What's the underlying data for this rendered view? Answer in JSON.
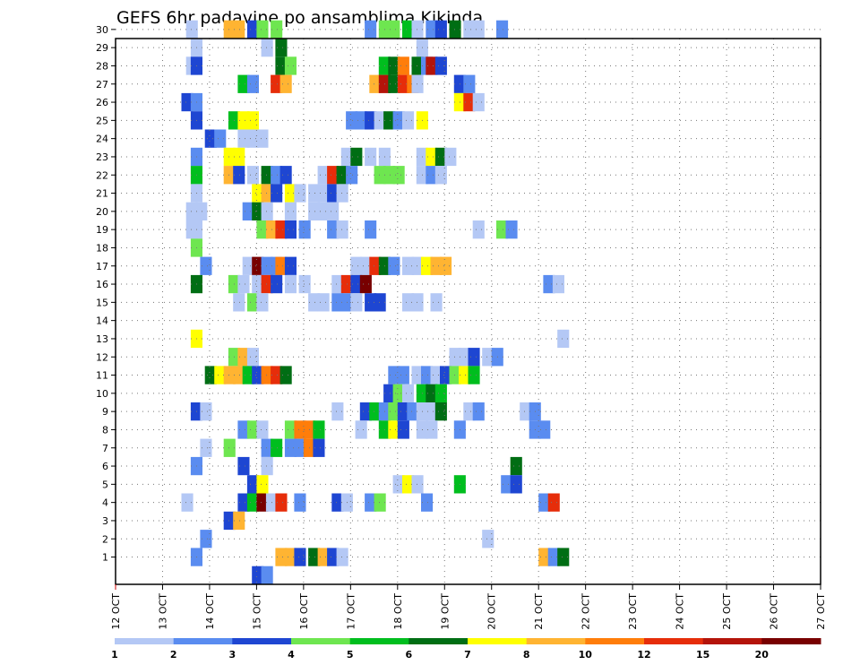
{
  "chart_data": {
    "type": "heatmap",
    "title": "GEFS 6hr padavine po ansamblima Kikinda",
    "x_labels": [
      "12 OCT",
      "13 OCT",
      "14 OCT",
      "15 OCT",
      "16 OCT",
      "17 OCT",
      "18 OCT",
      "19 OCT",
      "20 OCT",
      "21 OCT",
      "22 OCT",
      "23 OCT",
      "24 OCT",
      "25 OCT",
      "26 OCT",
      "27 OCT"
    ],
    "y_labels": [
      "1",
      "2",
      "3",
      "4",
      "5",
      "6",
      "7",
      "8",
      "9",
      "10",
      "11",
      "12",
      "13",
      "14",
      "15",
      "16",
      "17",
      "18",
      "19",
      "20",
      "21",
      "22",
      "23",
      "24",
      "25",
      "26",
      "27",
      "28",
      "29",
      "30"
    ],
    "grid": true,
    "colorbar": {
      "colors": [
        "#b4c8f5",
        "#5a8cf0",
        "#1e46d2",
        "#6ee650",
        "#00be1e",
        "#006e14",
        "#ffff00",
        "#ffb432",
        "#ff7d0a",
        "#e62d0a",
        "#b4140a",
        "#780000"
      ],
      "labels": [
        "1",
        "2",
        "3",
        "4",
        "5",
        "6",
        "7",
        "8",
        "10",
        "12",
        "15",
        "20"
      ]
    },
    "cells": [
      [
        30,
        1.5,
        1
      ],
      [
        30,
        2.3,
        8
      ],
      [
        30,
        2.5,
        8
      ],
      [
        30,
        2.8,
        3
      ],
      [
        30,
        3.0,
        4
      ],
      [
        30,
        3.3,
        4
      ],
      [
        30,
        5.3,
        2
      ],
      [
        30,
        5.6,
        4
      ],
      [
        30,
        5.8,
        4
      ],
      [
        30,
        6.1,
        5
      ],
      [
        30,
        6.3,
        1
      ],
      [
        30,
        6.6,
        2
      ],
      [
        30,
        6.8,
        3
      ],
      [
        30,
        7.1,
        6
      ],
      [
        30,
        7.4,
        1
      ],
      [
        30,
        7.6,
        1
      ],
      [
        30,
        8.1,
        2
      ],
      [
        29,
        1.6,
        1
      ],
      [
        29,
        3.1,
        1
      ],
      [
        29,
        3.4,
        6
      ],
      [
        29,
        6.4,
        1
      ],
      [
        28,
        1.5,
        1
      ],
      [
        28,
        1.6,
        3
      ],
      [
        28,
        3.4,
        6
      ],
      [
        28,
        3.6,
        4
      ],
      [
        28,
        5.6,
        5
      ],
      [
        28,
        5.8,
        6
      ],
      [
        28,
        6.0,
        9
      ],
      [
        28,
        6.3,
        6
      ],
      [
        28,
        6.5,
        2
      ],
      [
        28,
        6.6,
        11
      ],
      [
        28,
        6.8,
        3
      ],
      [
        27,
        2.6,
        5
      ],
      [
        27,
        2.8,
        2
      ],
      [
        27,
        3.3,
        10
      ],
      [
        27,
        3.5,
        8
      ],
      [
        27,
        5.4,
        8
      ],
      [
        27,
        5.6,
        11
      ],
      [
        27,
        5.8,
        6
      ],
      [
        27,
        6.0,
        10
      ],
      [
        27,
        6.2,
        9
      ],
      [
        27,
        6.3,
        1
      ],
      [
        27,
        7.2,
        3
      ],
      [
        27,
        7.4,
        2
      ],
      [
        26,
        1.4,
        3
      ],
      [
        26,
        1.6,
        2
      ],
      [
        26,
        7.2,
        7
      ],
      [
        26,
        7.4,
        10
      ],
      [
        26,
        7.6,
        1
      ],
      [
        25,
        1.6,
        3
      ],
      [
        25,
        2.4,
        5
      ],
      [
        25,
        2.6,
        7
      ],
      [
        25,
        2.8,
        7
      ],
      [
        25,
        4.9,
        2
      ],
      [
        25,
        5.1,
        2
      ],
      [
        25,
        5.3,
        3
      ],
      [
        25,
        5.5,
        1
      ],
      [
        25,
        5.7,
        6
      ],
      [
        25,
        5.9,
        2
      ],
      [
        25,
        6.1,
        1
      ],
      [
        25,
        6.4,
        7
      ],
      [
        24,
        1.9,
        3
      ],
      [
        24,
        2.1,
        2
      ],
      [
        24,
        2.6,
        1
      ],
      [
        24,
        2.8,
        1
      ],
      [
        24,
        3.0,
        1
      ],
      [
        23,
        1.6,
        2
      ],
      [
        23,
        2.3,
        7
      ],
      [
        23,
        2.5,
        7
      ],
      [
        23,
        4.8,
        1
      ],
      [
        23,
        5.0,
        6
      ],
      [
        23,
        5.3,
        1
      ],
      [
        23,
        5.6,
        1
      ],
      [
        23,
        6.4,
        1
      ],
      [
        23,
        6.6,
        7
      ],
      [
        23,
        6.8,
        6
      ],
      [
        23,
        7.0,
        1
      ],
      [
        22,
        1.6,
        5
      ],
      [
        22,
        2.3,
        8
      ],
      [
        22,
        2.5,
        3
      ],
      [
        22,
        2.8,
        1
      ],
      [
        22,
        3.1,
        6
      ],
      [
        22,
        3.3,
        2
      ],
      [
        22,
        3.5,
        3
      ],
      [
        22,
        4.3,
        1
      ],
      [
        22,
        4.5,
        10
      ],
      [
        22,
        4.7,
        6
      ],
      [
        22,
        4.9,
        2
      ],
      [
        22,
        5.5,
        4
      ],
      [
        22,
        5.7,
        4
      ],
      [
        22,
        5.9,
        4
      ],
      [
        22,
        6.4,
        1
      ],
      [
        22,
        6.6,
        2
      ],
      [
        22,
        6.8,
        1
      ],
      [
        21,
        1.6,
        1
      ],
      [
        21,
        2.9,
        7
      ],
      [
        21,
        3.1,
        8
      ],
      [
        21,
        3.3,
        3
      ],
      [
        21,
        3.6,
        7
      ],
      [
        21,
        3.8,
        1
      ],
      [
        21,
        4.1,
        1
      ],
      [
        21,
        4.3,
        1
      ],
      [
        21,
        4.5,
        3
      ],
      [
        21,
        4.7,
        1
      ],
      [
        20,
        1.5,
        1
      ],
      [
        20,
        1.7,
        1
      ],
      [
        20,
        2.7,
        2
      ],
      [
        20,
        2.9,
        6
      ],
      [
        20,
        3.1,
        1
      ],
      [
        20,
        3.6,
        1
      ],
      [
        20,
        4.1,
        1
      ],
      [
        20,
        4.3,
        1
      ],
      [
        20,
        4.5,
        1
      ],
      [
        19,
        1.5,
        1
      ],
      [
        19,
        1.6,
        1
      ],
      [
        19,
        3.0,
        4
      ],
      [
        19,
        3.2,
        8
      ],
      [
        19,
        3.4,
        10
      ],
      [
        19,
        3.6,
        3
      ],
      [
        19,
        3.9,
        2
      ],
      [
        19,
        4.5,
        2
      ],
      [
        19,
        4.7,
        1
      ],
      [
        19,
        5.3,
        2
      ],
      [
        19,
        7.6,
        1
      ],
      [
        19,
        8.1,
        4
      ],
      [
        19,
        8.3,
        2
      ],
      [
        18,
        1.6,
        4
      ],
      [
        17,
        1.8,
        2
      ],
      [
        17,
        2.7,
        1
      ],
      [
        17,
        2.9,
        12
      ],
      [
        17,
        3.1,
        2
      ],
      [
        17,
        3.3,
        2
      ],
      [
        17,
        3.4,
        9
      ],
      [
        17,
        3.6,
        3
      ],
      [
        17,
        5.0,
        1
      ],
      [
        17,
        5.2,
        1
      ],
      [
        17,
        5.4,
        10
      ],
      [
        17,
        5.6,
        6
      ],
      [
        17,
        5.8,
        2
      ],
      [
        17,
        6.1,
        1
      ],
      [
        17,
        6.3,
        1
      ],
      [
        17,
        6.5,
        7
      ],
      [
        17,
        6.7,
        8
      ],
      [
        17,
        6.9,
        8
      ],
      [
        16,
        1.6,
        6
      ],
      [
        16,
        2.4,
        4
      ],
      [
        16,
        2.6,
        1
      ],
      [
        16,
        2.9,
        1
      ],
      [
        16,
        3.1,
        10
      ],
      [
        16,
        3.3,
        3
      ],
      [
        16,
        3.6,
        1
      ],
      [
        16,
        3.9,
        1
      ],
      [
        16,
        4.6,
        1
      ],
      [
        16,
        4.8,
        10
      ],
      [
        16,
        5.0,
        3
      ],
      [
        16,
        5.2,
        12
      ],
      [
        16,
        9.1,
        2
      ],
      [
        16,
        9.3,
        1
      ],
      [
        15,
        2.5,
        1
      ],
      [
        15,
        2.8,
        4
      ],
      [
        15,
        3.0,
        1
      ],
      [
        15,
        4.1,
        1
      ],
      [
        15,
        4.3,
        1
      ],
      [
        15,
        4.6,
        2
      ],
      [
        15,
        4.8,
        2
      ],
      [
        15,
        5.0,
        1
      ],
      [
        15,
        5.3,
        3
      ],
      [
        15,
        5.5,
        3
      ],
      [
        15,
        6.1,
        1
      ],
      [
        15,
        6.3,
        1
      ],
      [
        15,
        6.7,
        1
      ],
      [
        13,
        1.6,
        7
      ],
      [
        13,
        9.4,
        1
      ],
      [
        12,
        2.4,
        4
      ],
      [
        12,
        2.6,
        8
      ],
      [
        12,
        2.8,
        1
      ],
      [
        12,
        7.1,
        1
      ],
      [
        12,
        7.3,
        1
      ],
      [
        12,
        7.5,
        3
      ],
      [
        12,
        7.8,
        1
      ],
      [
        12,
        8.0,
        2
      ],
      [
        11,
        1.9,
        6
      ],
      [
        11,
        2.1,
        7
      ],
      [
        11,
        2.3,
        8
      ],
      [
        11,
        2.5,
        8
      ],
      [
        11,
        2.7,
        5
      ],
      [
        11,
        2.9,
        3
      ],
      [
        11,
        3.1,
        9
      ],
      [
        11,
        3.3,
        10
      ],
      [
        11,
        3.5,
        6
      ],
      [
        11,
        5.8,
        2
      ],
      [
        11,
        6.0,
        2
      ],
      [
        11,
        6.3,
        1
      ],
      [
        11,
        6.5,
        2
      ],
      [
        11,
        6.7,
        1
      ],
      [
        11,
        6.9,
        3
      ],
      [
        11,
        7.1,
        4
      ],
      [
        11,
        7.3,
        7
      ],
      [
        11,
        7.5,
        5
      ],
      [
        10,
        5.7,
        3
      ],
      [
        10,
        5.9,
        4
      ],
      [
        10,
        6.1,
        1
      ],
      [
        10,
        6.4,
        5
      ],
      [
        10,
        6.6,
        6
      ],
      [
        10,
        6.8,
        5
      ],
      [
        9,
        1.6,
        3
      ],
      [
        9,
        1.8,
        1
      ],
      [
        9,
        4.6,
        1
      ],
      [
        9,
        5.2,
        3
      ],
      [
        9,
        5.4,
        5
      ],
      [
        9,
        5.6,
        2
      ],
      [
        9,
        5.8,
        4
      ],
      [
        9,
        6.0,
        3
      ],
      [
        9,
        6.2,
        2
      ],
      [
        9,
        6.4,
        1
      ],
      [
        9,
        6.6,
        1
      ],
      [
        9,
        6.8,
        6
      ],
      [
        9,
        7.4,
        1
      ],
      [
        9,
        7.6,
        2
      ],
      [
        9,
        8.6,
        1
      ],
      [
        9,
        8.8,
        2
      ],
      [
        8,
        2.6,
        2
      ],
      [
        8,
        2.8,
        4
      ],
      [
        8,
        3.0,
        1
      ],
      [
        8,
        3.6,
        4
      ],
      [
        8,
        3.8,
        9
      ],
      [
        8,
        4.0,
        9
      ],
      [
        8,
        4.2,
        5
      ],
      [
        8,
        5.1,
        1
      ],
      [
        8,
        5.6,
        5
      ],
      [
        8,
        5.8,
        7
      ],
      [
        8,
        6.0,
        3
      ],
      [
        8,
        6.4,
        1
      ],
      [
        8,
        6.6,
        1
      ],
      [
        8,
        7.2,
        2
      ],
      [
        8,
        8.8,
        2
      ],
      [
        8,
        9.0,
        2
      ],
      [
        7,
        1.8,
        1
      ],
      [
        7,
        2.3,
        4
      ],
      [
        7,
        3.1,
        2
      ],
      [
        7,
        3.3,
        5
      ],
      [
        7,
        3.6,
        2
      ],
      [
        7,
        3.8,
        2
      ],
      [
        7,
        4.0,
        9
      ],
      [
        7,
        4.2,
        3
      ],
      [
        6,
        1.6,
        2
      ],
      [
        6,
        2.6,
        3
      ],
      [
        6,
        3.1,
        1
      ],
      [
        6,
        8.4,
        6
      ],
      [
        5,
        2.8,
        3
      ],
      [
        5,
        3.0,
        7
      ],
      [
        5,
        5.9,
        1
      ],
      [
        5,
        6.1,
        7
      ],
      [
        5,
        6.3,
        1
      ],
      [
        5,
        7.2,
        5
      ],
      [
        5,
        8.2,
        2
      ],
      [
        5,
        8.4,
        3
      ],
      [
        4,
        1.4,
        1
      ],
      [
        4,
        2.6,
        3
      ],
      [
        4,
        2.8,
        5
      ],
      [
        4,
        3.0,
        12
      ],
      [
        4,
        3.2,
        1
      ],
      [
        4,
        3.4,
        10
      ],
      [
        4,
        3.8,
        2
      ],
      [
        4,
        4.6,
        3
      ],
      [
        4,
        4.8,
        1
      ],
      [
        4,
        5.3,
        2
      ],
      [
        4,
        5.5,
        4
      ],
      [
        4,
        6.5,
        2
      ],
      [
        4,
        9.0,
        2
      ],
      [
        4,
        9.2,
        10
      ],
      [
        3,
        2.3,
        3
      ],
      [
        3,
        2.5,
        8
      ],
      [
        2,
        1.8,
        2
      ],
      [
        2,
        7.8,
        1
      ],
      [
        1,
        1.6,
        2
      ],
      [
        1,
        3.4,
        8
      ],
      [
        1,
        3.6,
        8
      ],
      [
        1,
        3.8,
        3
      ],
      [
        1,
        4.1,
        6
      ],
      [
        1,
        4.3,
        8
      ],
      [
        1,
        4.5,
        3
      ],
      [
        1,
        4.7,
        1
      ],
      [
        1,
        9.0,
        8
      ],
      [
        1,
        9.2,
        2
      ],
      [
        1,
        9.4,
        6
      ],
      [
        0,
        2.9,
        3
      ],
      [
        0,
        3.1,
        2
      ]
    ]
  }
}
